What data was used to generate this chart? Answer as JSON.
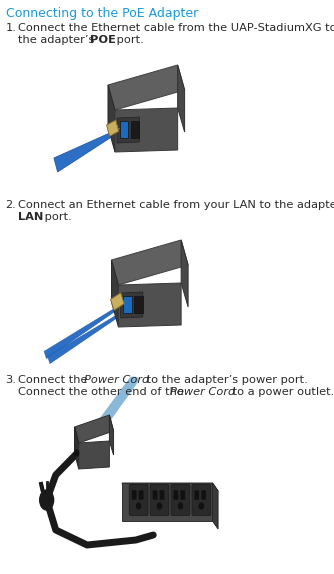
{
  "title": "Connecting to the PoE Adapter",
  "title_color": "#1a9ad7",
  "title_fontsize": 9.0,
  "bg_color": "#ffffff",
  "text_color": "#2a2a2a",
  "body_fontsize": 8.2,
  "fig_width": 3.34,
  "fig_height": 5.74,
  "dpi": 100,
  "step1_num": "1.",
  "step1_line1": "Connect the Ethernet cable from the UAP-StadiumXG to",
  "step1_line2a": "the adapter’s ",
  "step1_bold": "POE",
  "step1_line2b": " port.",
  "step2_num": "2.",
  "step2_line1": "Connect an Ethernet cable from your LAN to the adapter’s",
  "step2_line2a": "",
  "step2_bold": "LAN",
  "step2_line2b": " port.",
  "step3_num": "3.",
  "step3_line1a": "Connect the ",
  "step3_italic1": "Power Cord",
  "step3_line1b": " to the adapter’s power port.",
  "step3_line2a": "Connect the other end of the ",
  "step3_italic2": "Power Cord",
  "step3_line2b": " to a power outlet.",
  "adapter_color": "#585858",
  "adapter_dark": "#3a3a3a",
  "adapter_darker": "#2a2a2a",
  "port_color": "#1a1a1a",
  "cable_blue": "#2d6fc4",
  "cable_blue_light": "#4a8fd4",
  "connector_tan": "#c8b060",
  "connector_dark": "#8a7030"
}
